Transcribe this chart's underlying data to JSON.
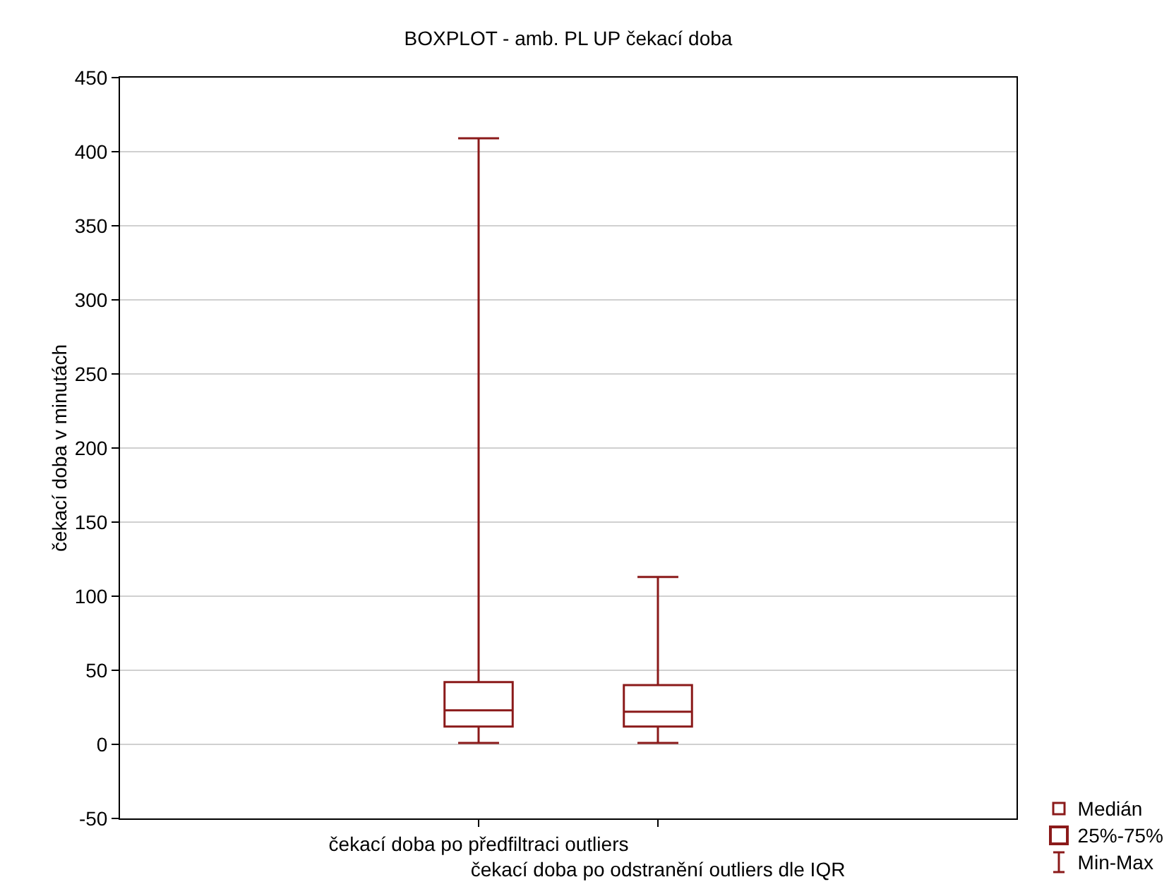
{
  "chart_data": {
    "type": "box",
    "title": "BOXPLOT - amb. PL UP čekací doba",
    "ylabel": "čekací doba v minutách",
    "categories": [
      "čekací doba po předfiltraci outliers",
      "čekací doba po odstranění outliers dle IQR"
    ],
    "series": [
      {
        "color": "#8b1a1a",
        "boxes": [
          {
            "low": 1,
            "q1": 12,
            "median": 23,
            "q3": 42,
            "high": 409
          },
          {
            "low": 1,
            "q1": 12,
            "median": 22,
            "q3": 40,
            "high": 113
          }
        ]
      }
    ],
    "ylim": [
      -50,
      450
    ],
    "yticks": [
      -50,
      0,
      50,
      100,
      150,
      200,
      250,
      300,
      350,
      400,
      450
    ],
    "grid": "y",
    "annotations": [
      "Medián",
      "25%-75%",
      "Min-Max"
    ]
  }
}
